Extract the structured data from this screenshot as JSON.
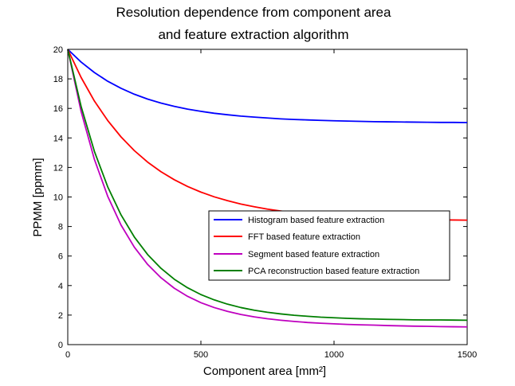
{
  "chart_data": {
    "type": "line",
    "title_line1": "Resolution dependence from component area",
    "title_line2": "and feature extraction algorithm",
    "xlabel": "Component area [mm²]",
    "ylabel": "PPMM [ppmm]",
    "xlim": [
      0,
      1500
    ],
    "ylim": [
      0,
      20
    ],
    "xticks": [
      0,
      500,
      1000,
      1500
    ],
    "yticks": [
      0,
      2,
      4,
      6,
      8,
      10,
      12,
      14,
      16,
      18,
      20
    ],
    "grid": false,
    "legend_position": "right, below center",
    "x": [
      0,
      50,
      100,
      150,
      200,
      250,
      300,
      350,
      400,
      450,
      500,
      550,
      600,
      650,
      700,
      750,
      800,
      850,
      900,
      950,
      1000,
      1050,
      1100,
      1150,
      1200,
      1250,
      1300,
      1350,
      1400,
      1450,
      1500
    ],
    "series": [
      {
        "name": "Histogram based feature extraction",
        "color": "#0000ff",
        "values": [
          20.0,
          19.14,
          18.43,
          17.84,
          17.36,
          16.96,
          16.63,
          16.36,
          16.14,
          15.95,
          15.8,
          15.67,
          15.57,
          15.48,
          15.41,
          15.35,
          15.29,
          15.25,
          15.22,
          15.19,
          15.16,
          15.14,
          15.12,
          15.1,
          15.09,
          15.08,
          15.07,
          15.06,
          15.05,
          15.05,
          15.04
        ]
      },
      {
        "name": "FFT based feature extraction",
        "color": "#ff0000",
        "values": [
          20.0,
          18.1,
          16.5,
          15.18,
          14.07,
          13.14,
          12.36,
          11.71,
          11.17,
          10.71,
          10.33,
          10.01,
          9.75,
          9.52,
          9.34,
          9.18,
          9.05,
          8.94,
          8.85,
          8.77,
          8.71,
          8.65,
          8.61,
          8.57,
          8.54,
          8.51,
          8.49,
          8.47,
          8.45,
          8.44,
          8.43
        ]
      },
      {
        "name": "Segment based feature extraction",
        "color": "#bf00bf",
        "values": [
          20.0,
          15.8,
          12.55,
          10.05,
          8.1,
          6.6,
          5.43,
          4.53,
          3.82,
          3.27,
          2.84,
          2.51,
          2.25,
          2.04,
          1.88,
          1.75,
          1.65,
          1.57,
          1.5,
          1.45,
          1.41,
          1.37,
          1.34,
          1.32,
          1.29,
          1.27,
          1.25,
          1.24,
          1.22,
          1.21,
          1.2
        ]
      },
      {
        "name": "PCA reconstruction based feature extraction",
        "color": "#007f00",
        "values": [
          20.0,
          16.14,
          13.09,
          10.69,
          8.79,
          7.29,
          6.1,
          5.17,
          4.43,
          3.85,
          3.39,
          3.03,
          2.74,
          2.51,
          2.33,
          2.19,
          2.08,
          1.99,
          1.92,
          1.86,
          1.82,
          1.78,
          1.75,
          1.73,
          1.71,
          1.7,
          1.68,
          1.67,
          1.67,
          1.66,
          1.65
        ]
      }
    ]
  }
}
